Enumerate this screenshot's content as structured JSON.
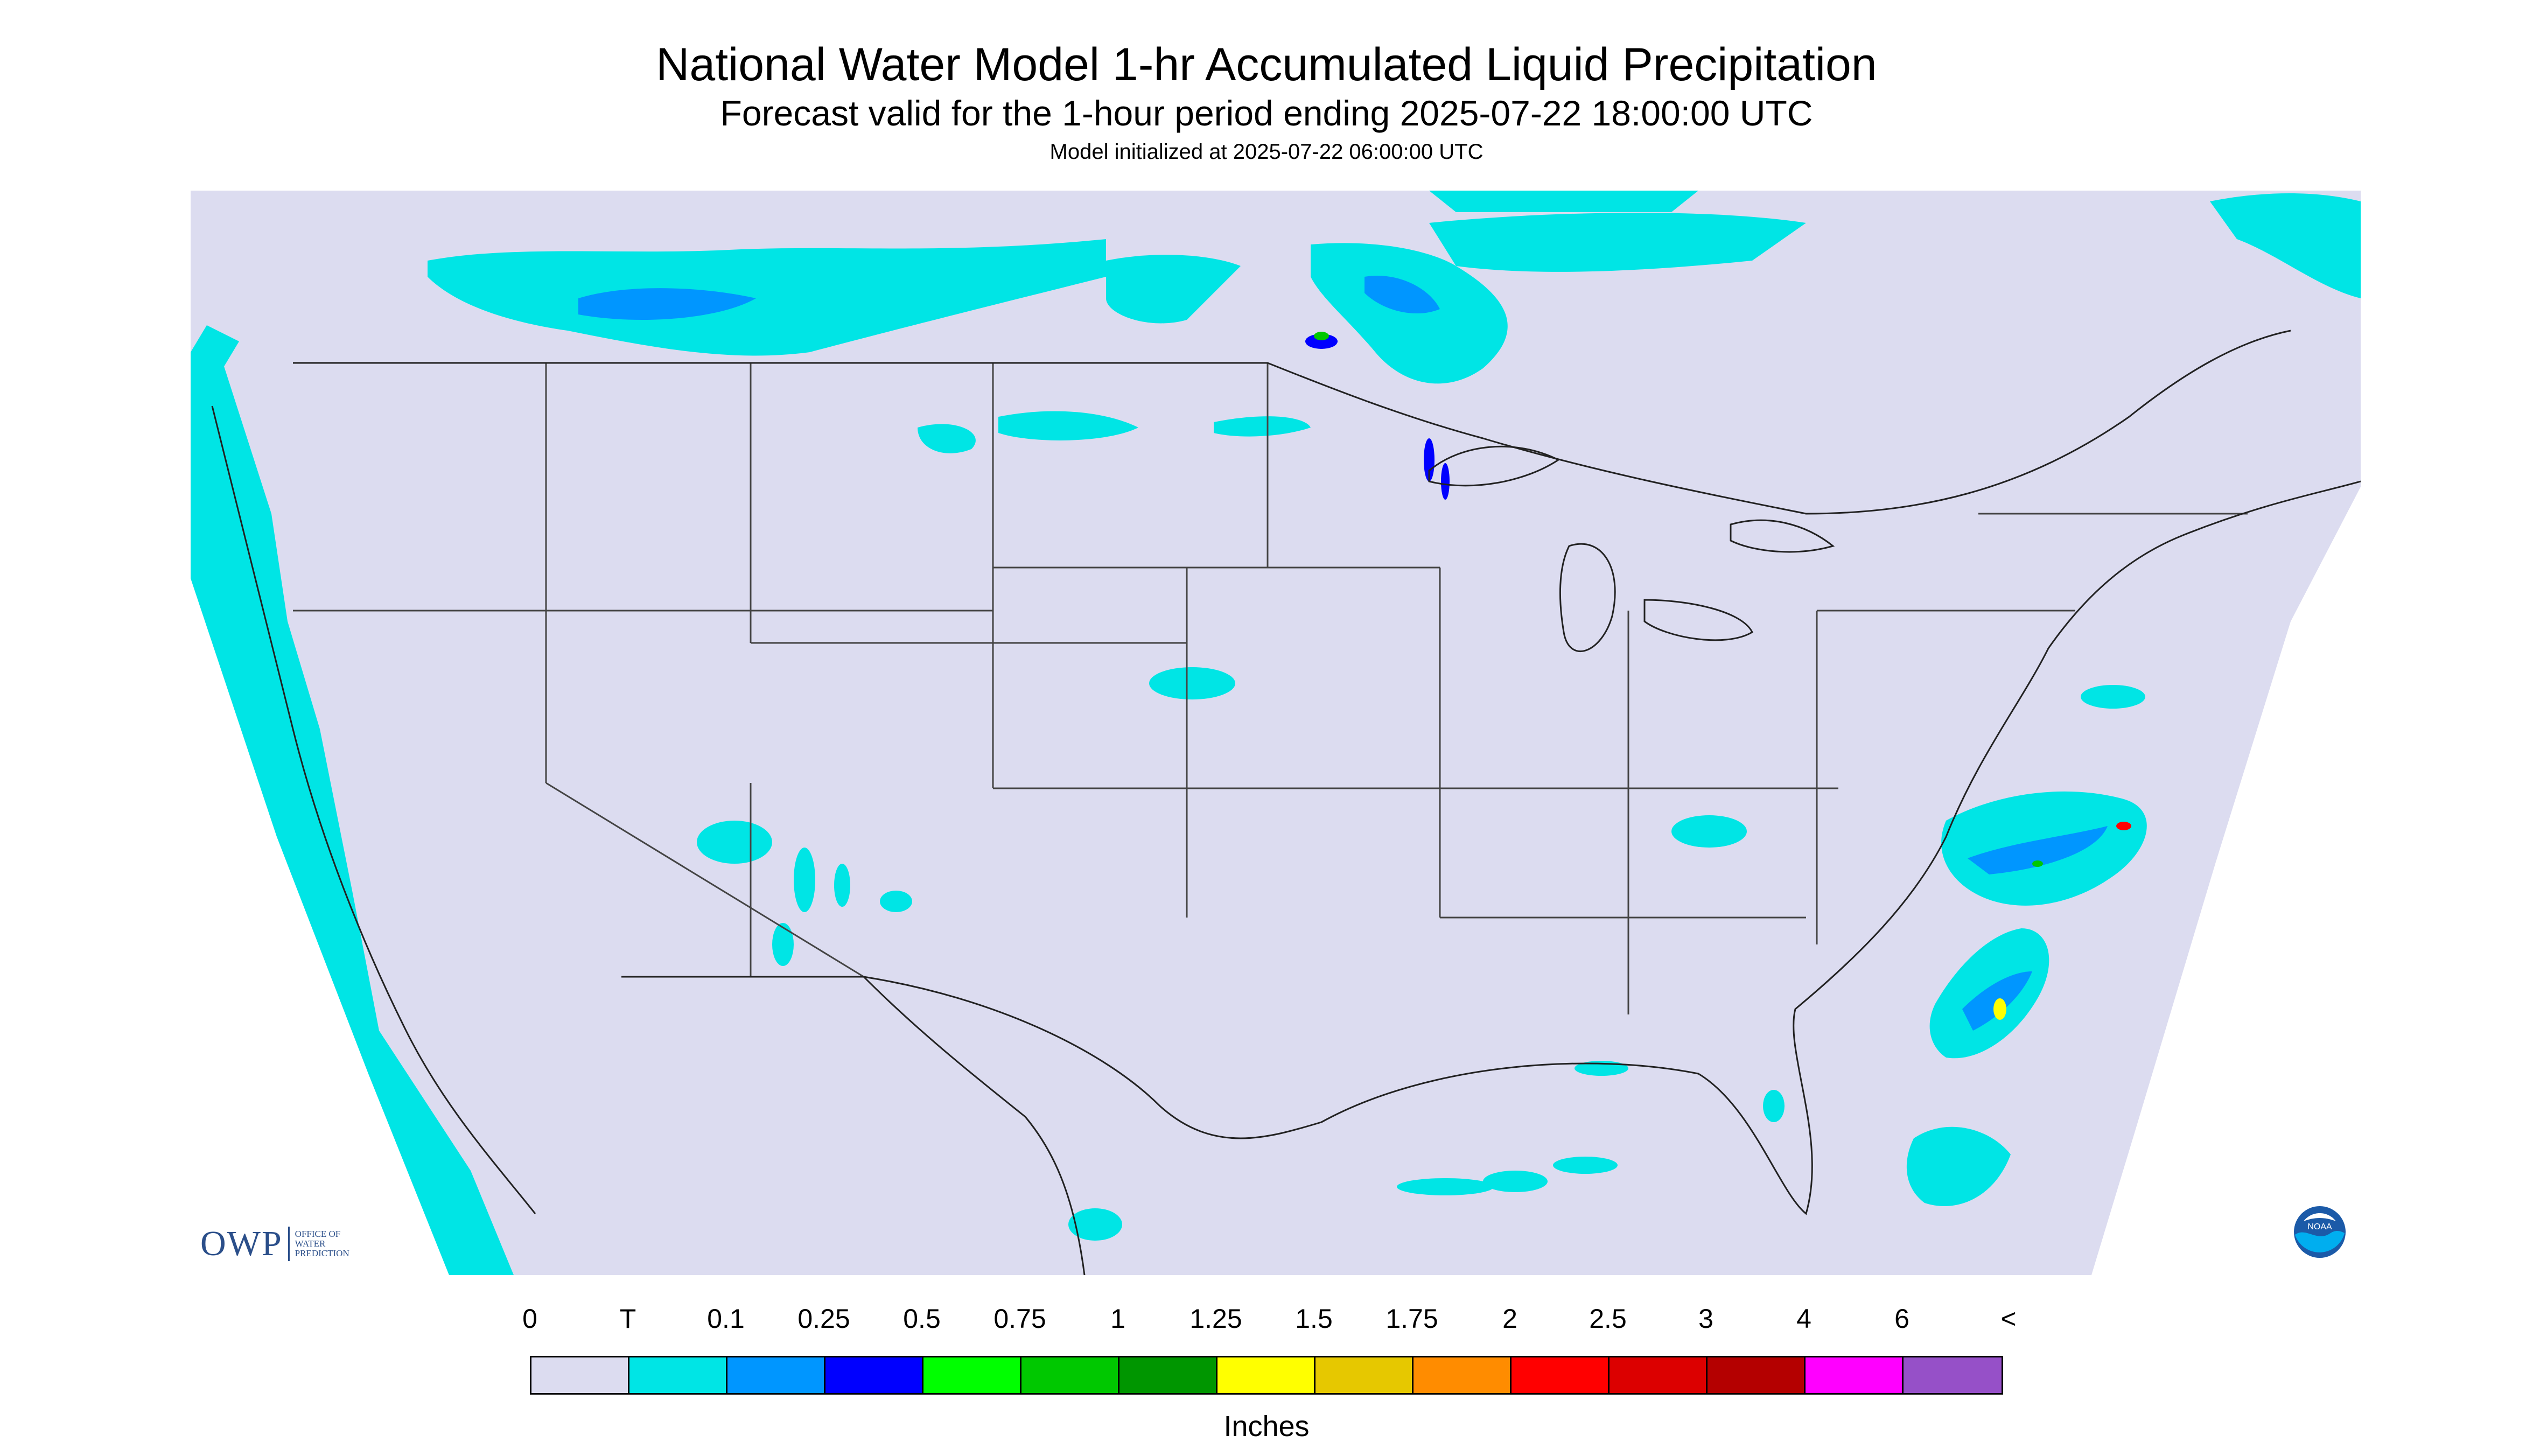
{
  "header": {
    "title": "National Water Model 1-hr Accumulated Liquid Precipitation",
    "subtitle": "Forecast valid for the 1-hour period ending 2025-07-22 18:00:00 UTC",
    "init": "Model initialized at 2025-07-22 06:00:00 UTC"
  },
  "legend": {
    "labels": [
      "0",
      "T",
      "0.1",
      "0.25",
      "0.5",
      "0.75",
      "1",
      "1.25",
      "1.5",
      "1.75",
      "2",
      "2.5",
      "3",
      "4",
      "6",
      "<"
    ],
    "colors": [
      "#dcdcf0",
      "#00e5e5",
      "#0096ff",
      "#0000ff",
      "#00ff00",
      "#00c800",
      "#009600",
      "#ffff00",
      "#e6c800",
      "#ff8c00",
      "#ff0000",
      "#dc0000",
      "#b40000",
      "#ff00ff",
      "#9650c8"
    ],
    "units": "Inches"
  },
  "map": {
    "background_color": "#dcdcf0",
    "outside_color": "#ffffff",
    "trace_color": "#00e5e5",
    "light_color": "#0096ff",
    "heavy_color": "#0000ff"
  },
  "logos": {
    "owp_mark": "OWP",
    "owp_line1": "OFFICE OF",
    "owp_line2": "WATER",
    "owp_line3": "PREDICTION",
    "noaa_icon": "noaa-logo-icon",
    "noaa_text": "NOAA"
  }
}
